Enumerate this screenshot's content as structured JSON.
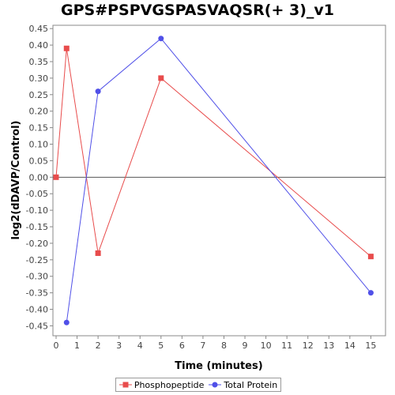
{
  "chart_data": {
    "type": "line",
    "title": "GPS#PSPVGSPASVAQSR(+ 3)_v1",
    "xlabel": "Time (minutes)",
    "ylabel": "log2(dDAVP/Control)",
    "xlim": [
      0,
      15.7
    ],
    "ylim": [
      -0.48,
      0.46
    ],
    "xticks": [
      0,
      1,
      2,
      3,
      4,
      5,
      6,
      7,
      8,
      9,
      10,
      11,
      12,
      13,
      14,
      15
    ],
    "yticks": [
      -0.45,
      -0.4,
      -0.35,
      -0.3,
      -0.25,
      -0.2,
      -0.15,
      -0.1,
      -0.05,
      0.0,
      0.05,
      0.1,
      0.15,
      0.2,
      0.25,
      0.3,
      0.35,
      0.4,
      0.45
    ],
    "ytick_labels": [
      "-0.45",
      "-0.40",
      "-0.35",
      "-0.30",
      "-0.25",
      "-0.20",
      "-0.15",
      "-0.10",
      "-0.05",
      "0.00",
      "0.05",
      "0.10",
      "0.15",
      "0.20",
      "0.25",
      "0.30",
      "0.35",
      "0.40",
      "0.45"
    ],
    "grid": false,
    "zero_line": true,
    "legend_position": "bottom",
    "series": [
      {
        "name": "Phosphopeptide",
        "color": "#e84c4c",
        "marker": "square",
        "x": [
          0,
          0.5,
          2,
          5,
          15
        ],
        "y": [
          0.0,
          0.39,
          -0.23,
          0.3,
          -0.24
        ]
      },
      {
        "name": "Total Protein",
        "color": "#5050e8",
        "marker": "circle",
        "x": [
          0.5,
          2,
          5,
          15
        ],
        "y": [
          -0.44,
          0.26,
          0.42,
          -0.35
        ]
      }
    ]
  }
}
